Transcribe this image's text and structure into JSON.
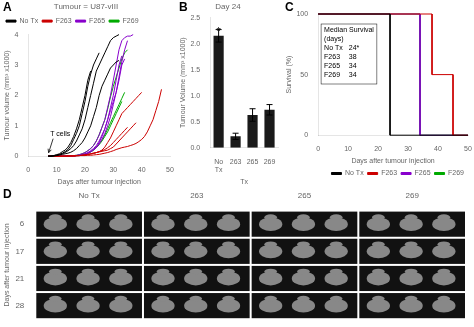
{
  "chart_data": [
    {
      "type": "line",
      "title": "Tumour = U87-vIII",
      "xlabel": "Days after tumour injection",
      "ylabel": "Tumour volume (mm³ x1000)",
      "xlim": [
        0,
        50
      ],
      "xticks": [
        0,
        10,
        20,
        30,
        40,
        50
      ],
      "ylim": [
        0,
        4
      ],
      "yticks": [
        0,
        1,
        2,
        3,
        4
      ],
      "grid": false,
      "legend": "upper left",
      "series": [
        {
          "name": "No Tx",
          "color": "#000000",
          "x": [
            7,
            8,
            9,
            10,
            11,
            12,
            13,
            14,
            15,
            16,
            17,
            18,
            19,
            20,
            21,
            22
          ],
          "values": [
            0,
            0,
            0.02,
            0.05,
            0.08,
            0.15,
            0.2,
            0.3,
            0.45,
            0.65,
            0.9,
            1.2,
            1.6,
            2.0,
            2.5,
            2.8
          ]
        },
        {
          "name": "No Tx",
          "color": "#000000",
          "x": [
            7,
            8,
            9,
            10,
            11,
            12,
            13,
            14,
            15,
            16,
            17,
            18,
            19,
            20,
            21,
            22,
            23,
            24,
            25
          ],
          "values": [
            0,
            0,
            0.02,
            0.04,
            0.06,
            0.1,
            0.15,
            0.22,
            0.35,
            0.55,
            0.75,
            1.0,
            1.4,
            1.8,
            2.3,
            2.7,
            3.0,
            3.2,
            3.4
          ]
        },
        {
          "name": "No Tx",
          "color": "#000000",
          "x": [
            7,
            8,
            9,
            10,
            11,
            12,
            13,
            14,
            15,
            16,
            17,
            18,
            19,
            20,
            21,
            22,
            23,
            24,
            25,
            26,
            27,
            28,
            29,
            30,
            31,
            32
          ],
          "values": [
            0,
            0,
            0.01,
            0.03,
            0.05,
            0.08,
            0.12,
            0.18,
            0.25,
            0.35,
            0.5,
            0.7,
            0.9,
            1.2,
            1.6,
            2.0,
            2.4,
            2.8,
            3.0,
            3.2,
            3.4,
            3.6,
            3.8,
            3.9,
            3.95,
            4.0
          ]
        },
        {
          "name": "No Tx",
          "color": "#000000",
          "x": [
            7,
            8,
            9,
            10,
            11,
            12,
            13,
            14,
            15,
            16,
            17,
            18,
            19,
            20,
            21,
            22,
            23,
            24,
            25,
            26,
            27,
            28,
            29,
            30,
            31,
            32
          ],
          "values": [
            0,
            0,
            0.01,
            0.02,
            0.04,
            0.06,
            0.08,
            0.1,
            0.13,
            0.18,
            0.25,
            0.35,
            0.45,
            0.6,
            0.8,
            1.0,
            1.3,
            1.6,
            2.0,
            2.3,
            2.5,
            2.7,
            2.9,
            3.0,
            3.1,
            3.15
          ]
        },
        {
          "name": "F263",
          "color": "#cc0000",
          "x": [
            7,
            8,
            9,
            10,
            11,
            12,
            13,
            14,
            15,
            16,
            17,
            18,
            19,
            20,
            21,
            22,
            23,
            24,
            25,
            26,
            27,
            28,
            29,
            30,
            31,
            32,
            33,
            34,
            35,
            36,
            37,
            38,
            39,
            40
          ],
          "values": [
            0,
            0,
            0,
            0,
            0,
            0,
            0,
            0.01,
            0.01,
            0.01,
            0.02,
            0.02,
            0.03,
            0.04,
            0.06,
            0.08,
            0.1,
            0.12,
            0.15,
            0.2,
            0.3,
            0.45,
            0.6,
            0.8,
            1.0,
            1.2,
            1.4,
            1.5,
            1.6,
            1.7,
            1.8,
            1.9,
            2.0,
            2.1
          ]
        },
        {
          "name": "F263",
          "color": "#cc0000",
          "x": [
            7,
            8,
            9,
            10,
            11,
            12,
            13,
            14,
            15,
            16,
            17,
            18,
            19,
            20,
            21,
            22,
            23,
            24,
            25,
            26,
            27,
            28,
            29,
            30,
            31,
            32,
            33,
            34,
            35,
            36,
            37,
            38
          ],
          "values": [
            0,
            0,
            0,
            0,
            0,
            0,
            0,
            0.01,
            0.01,
            0.01,
            0.02,
            0.02,
            0.03,
            0.04,
            0.06,
            0.08,
            0.1,
            0.12,
            0.14,
            0.16,
            0.18,
            0.2,
            0.25,
            0.3,
            0.4,
            0.5,
            0.6,
            0.7,
            0.8,
            0.9,
            1.0,
            1.1
          ]
        },
        {
          "name": "F263",
          "color": "#cc0000",
          "x": [
            7,
            8,
            9,
            10,
            11,
            12,
            13,
            14,
            15,
            16,
            17,
            18,
            19,
            20,
            21,
            22,
            23,
            24,
            25,
            26,
            27,
            28,
            29,
            30,
            31,
            32,
            33,
            34,
            35
          ],
          "values": [
            0,
            0,
            0,
            0,
            0,
            0,
            0,
            0.01,
            0.01,
            0.01,
            0.02,
            0.02,
            0.03,
            0.04,
            0.05,
            0.07,
            0.09,
            0.12,
            0.15,
            0.18,
            0.22,
            0.28,
            0.35,
            0.45,
            0.55,
            0.65,
            0.75,
            0.85,
            0.95
          ]
        },
        {
          "name": "F263",
          "color": "#cc0000",
          "x": [
            7,
            8,
            9,
            10,
            11,
            12,
            13,
            14,
            15,
            16,
            17,
            18,
            19,
            20,
            21,
            22,
            23,
            24,
            25,
            26,
            27,
            28,
            29,
            30,
            31,
            32,
            33,
            34,
            35,
            36,
            37,
            38,
            39,
            40,
            41,
            42,
            43,
            44,
            45,
            46,
            47
          ],
          "values": [
            0,
            0,
            0,
            0,
            0,
            0,
            0,
            0,
            0.01,
            0.01,
            0.01,
            0.02,
            0.02,
            0.02,
            0.03,
            0.03,
            0.04,
            0.05,
            0.06,
            0.08,
            0.1,
            0.12,
            0.15,
            0.18,
            0.22,
            0.25,
            0.28,
            0.3,
            0.32,
            0.35,
            0.38,
            0.42,
            0.48,
            0.55,
            0.65,
            0.8,
            1.0,
            1.2,
            1.5,
            1.8,
            2.2
          ]
        },
        {
          "name": "F265",
          "color": "#8800cc",
          "x": [
            7,
            8,
            9,
            10,
            11,
            12,
            13,
            14,
            15,
            16,
            17,
            18,
            19,
            20,
            21,
            22,
            23,
            24,
            25,
            26,
            27,
            28,
            29,
            30,
            31,
            32,
            33,
            34
          ],
          "values": [
            0,
            0,
            0,
            0,
            0,
            0,
            0,
            0.01,
            0.01,
            0.01,
            0.02,
            0.03,
            0.05,
            0.08,
            0.12,
            0.18,
            0.25,
            0.35,
            0.5,
            0.7,
            0.9,
            1.2,
            1.5,
            1.8,
            2.1,
            2.5,
            3.0,
            3.2
          ]
        },
        {
          "name": "F265",
          "color": "#8800cc",
          "x": [
            7,
            8,
            9,
            10,
            11,
            12,
            13,
            14,
            15,
            16,
            17,
            18,
            19,
            20,
            21,
            22,
            23,
            24,
            25,
            26,
            27,
            28,
            29,
            30,
            31,
            32,
            33
          ],
          "values": [
            0,
            0,
            0,
            0,
            0,
            0,
            0,
            0.01,
            0.01,
            0.01,
            0.02,
            0.02,
            0.04,
            0.06,
            0.1,
            0.15,
            0.22,
            0.3,
            0.45,
            0.65,
            0.9,
            1.2,
            1.6,
            2.0,
            2.5,
            3.0,
            3.3
          ]
        },
        {
          "name": "F265",
          "color": "#8800cc",
          "x": [
            7,
            8,
            9,
            10,
            11,
            12,
            13,
            14,
            15,
            16,
            17,
            18,
            19,
            20,
            21,
            22,
            23,
            24,
            25,
            26,
            27,
            28,
            29,
            30,
            31,
            32,
            33,
            34,
            35
          ],
          "values": [
            0,
            0,
            0,
            0,
            0,
            0,
            0,
            0.01,
            0.01,
            0.01,
            0.02,
            0.02,
            0.04,
            0.06,
            0.1,
            0.14,
            0.2,
            0.28,
            0.4,
            0.55,
            0.75,
            1.0,
            1.3,
            1.7,
            2.1,
            2.6,
            3.1,
            3.5,
            3.8
          ]
        },
        {
          "name": "F265",
          "color": "#8800cc",
          "x": [
            7,
            8,
            9,
            10,
            11,
            12,
            13,
            14,
            15,
            16,
            17,
            18,
            19,
            20,
            21,
            22,
            23,
            24,
            25,
            26,
            27,
            28,
            29,
            30,
            31,
            32,
            33,
            34,
            35,
            36,
            37
          ],
          "values": [
            0,
            0,
            0,
            0,
            0,
            0,
            0,
            0.01,
            0.01,
            0.02,
            0.03,
            0.05,
            0.08,
            0.12,
            0.18,
            0.25,
            0.35,
            0.5,
            0.7,
            0.95,
            1.2,
            1.6,
            2.0,
            2.5,
            3.0,
            3.5,
            3.8,
            3.9,
            3.95,
            3.95,
            4.0
          ]
        },
        {
          "name": "F269",
          "color": "#00aa00",
          "x": [
            7,
            8,
            9,
            10,
            11,
            12,
            13,
            14,
            15,
            16,
            17,
            18,
            19,
            20,
            21,
            22,
            23,
            24,
            25,
            26,
            27,
            28,
            29,
            30,
            31,
            32,
            33,
            34,
            35
          ],
          "values": [
            0,
            0,
            0,
            0,
            0,
            0,
            0,
            0.01,
            0.01,
            0.02,
            0.03,
            0.05,
            0.08,
            0.12,
            0.18,
            0.25,
            0.35,
            0.5,
            0.7,
            0.95,
            1.2,
            1.55,
            1.95,
            2.3,
            2.6,
            2.9,
            3.2,
            3.4,
            3.5
          ]
        },
        {
          "name": "F269",
          "color": "#00aa00",
          "x": [
            7,
            8,
            9,
            10,
            11,
            12,
            13,
            14,
            15,
            16,
            17,
            18,
            19,
            20,
            21,
            22,
            23,
            24,
            25,
            26,
            27,
            28,
            29,
            30,
            31,
            32,
            33
          ],
          "values": [
            0,
            0,
            0,
            0,
            0,
            0,
            0,
            0.01,
            0.01,
            0.01,
            0.02,
            0.03,
            0.05,
            0.07,
            0.1,
            0.15,
            0.2,
            0.28,
            0.38,
            0.5,
            0.65,
            0.8,
            1.0,
            1.2,
            1.4,
            1.6,
            1.8
          ]
        },
        {
          "name": "F269",
          "color": "#00aa00",
          "x": [
            7,
            8,
            9,
            10,
            11,
            12,
            13,
            14,
            15,
            16,
            17,
            18,
            19,
            20,
            21,
            22,
            23,
            24,
            25,
            26,
            27,
            28,
            29,
            30,
            31,
            32,
            33,
            34
          ],
          "values": [
            0,
            0,
            0,
            0,
            0,
            0,
            0,
            0.01,
            0.01,
            0.01,
            0.02,
            0.02,
            0.04,
            0.06,
            0.1,
            0.14,
            0.2,
            0.3,
            0.4,
            0.55,
            0.7,
            0.9,
            1.1,
            1.3,
            1.5,
            1.7,
            1.9,
            2.1
          ]
        }
      ],
      "annotations": [
        {
          "text": "A"
        },
        {
          "text": "T cells",
          "x": 7,
          "y": 0.05
        }
      ]
    },
    {
      "type": "bar",
      "title": "Day 24",
      "xlabel": "Tx",
      "ylabel": "Tumour Volume (mm³ x1000)",
      "categories": [
        "No\nTx",
        "263",
        "265",
        "269"
      ],
      "values": [
        2.15,
        0.22,
        0.63,
        0.73
      ],
      "errors": [
        0.12,
        0.06,
        0.12,
        0.1
      ],
      "color": "#1a1a1a",
      "ylim": [
        0,
        2.5
      ],
      "yticks": [
        {
          "value": 0,
          "label": "0.0"
        },
        0.5,
        {
          "value": 1,
          "label": "1.0"
        },
        1.5,
        {
          "value": 2,
          "label": "2.0"
        },
        2.5
      ],
      "grid": false,
      "annotations": [
        {
          "text": "B"
        },
        {
          "text": "*",
          "x": "No\nTx"
        }
      ]
    },
    {
      "type": "line",
      "xlabel": "Days after tumour injection",
      "ylabel": "Survival (%)",
      "xlim": [
        0,
        50
      ],
      "xticks": [
        0,
        10,
        20,
        30,
        40,
        50
      ],
      "ylim": [
        0,
        100
      ],
      "yticks": [
        0,
        50,
        100
      ],
      "grid": false,
      "legend": "lower right",
      "series": [
        {
          "name": "No Tx",
          "color": "#000000",
          "x": [
            0,
            24,
            24,
            50
          ],
          "values": [
            100,
            100,
            0,
            0
          ]
        },
        {
          "name": "F263",
          "color": "#cc0000",
          "x": [
            0,
            38,
            38,
            45,
            45,
            50
          ],
          "values": [
            100,
            100,
            50,
            50,
            0,
            0
          ]
        },
        {
          "name": "F265",
          "color": "#8800cc",
          "x": [
            0,
            34,
            34,
            50
          ],
          "values": [
            100,
            100,
            0,
            0
          ]
        },
        {
          "name": "F269",
          "color": "#00aa00",
          "x": [
            0,
            34,
            34,
            50
          ],
          "values": [
            100,
            100,
            0,
            0
          ]
        }
      ],
      "table": {
        "header": [
          "Median Survival",
          "(days)"
        ],
        "rows": [
          [
            "No Tx",
            "24*"
          ],
          [
            "F263",
            "38"
          ],
          [
            "F265",
            "34"
          ],
          [
            "F269",
            "34"
          ]
        ]
      },
      "annotations": [
        {
          "text": "C"
        }
      ]
    },
    {
      "type": "image_grid",
      "ylabel": "Days after tumour injection",
      "categories": [
        "No Tx",
        "263",
        "265",
        "269"
      ],
      "rows": [
        "6",
        "17",
        "21",
        "28"
      ],
      "annotations": [
        {
          "text": "D"
        }
      ]
    }
  ]
}
